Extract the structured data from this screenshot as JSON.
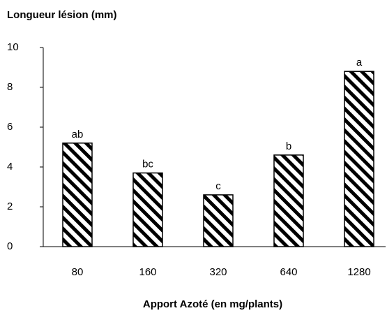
{
  "chart_data": {
    "type": "bar",
    "title": "Longueur lésion (mm)",
    "x_label": "Apport Azoté (en mg/plants)",
    "categories": [
      "80",
      "160",
      "320",
      "640",
      "1280"
    ],
    "values": [
      5.2,
      3.7,
      2.6,
      4.6,
      8.8
    ],
    "annotations": [
      "ab",
      "bc",
      "c",
      "b",
      "a"
    ],
    "color": "#000000",
    "ylim": [
      0,
      10
    ],
    "yticks": [
      0,
      2,
      4,
      6,
      8,
      10
    ],
    "grid": false
  }
}
